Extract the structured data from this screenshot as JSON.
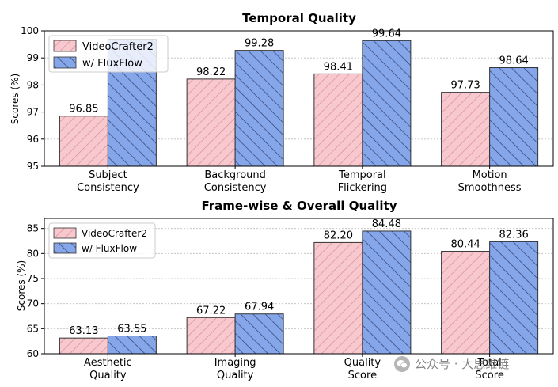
{
  "chart_data": [
    {
      "type": "bar",
      "title": "Temporal Quality",
      "ylabel": "Scores (%)",
      "xlabel": "",
      "ylim": [
        95,
        100
      ],
      "yticks": [
        95,
        96,
        97,
        98,
        99,
        100
      ],
      "categories": [
        [
          "Subject",
          "Consistency"
        ],
        [
          "Background",
          "Consistency"
        ],
        [
          "Temporal",
          "Flickering"
        ],
        [
          "Motion",
          "Smoothness"
        ]
      ],
      "series": [
        {
          "name": "VideoCrafter2",
          "values": [
            96.85,
            98.22,
            98.41,
            97.73
          ],
          "labels": [
            "96.85",
            "98.22",
            "98.41",
            "97.73"
          ],
          "fill": "#f7c9cf",
          "hatch": "#d98a96"
        },
        {
          "name": "w/ FluxFlow",
          "values": [
            99.69,
            99.28,
            99.64,
            98.64
          ],
          "labels": [
            "",
            "99.28",
            "99.64",
            "98.64"
          ],
          "fill": "#86a6ea",
          "hatch": "#2e3f6e"
        }
      ],
      "legend": "top-left",
      "grid": true
    },
    {
      "type": "bar",
      "title": "Frame-wise & Overall Quality",
      "ylabel": "Scores (%)",
      "xlabel": "",
      "ylim": [
        60,
        87
      ],
      "yticks": [
        60,
        65,
        70,
        75,
        80,
        85
      ],
      "categories": [
        [
          "Aesthetic",
          "Quality"
        ],
        [
          "Imaging",
          "Quality"
        ],
        [
          "Quality",
          "Score"
        ],
        [
          "Total",
          "Score"
        ]
      ],
      "series": [
        {
          "name": "VideoCrafter2",
          "values": [
            63.13,
            67.22,
            82.2,
            80.44
          ],
          "labels": [
            "63.13",
            "67.22",
            "82.20",
            "80.44"
          ],
          "fill": "#f7c9cf",
          "hatch": "#d98a96"
        },
        {
          "name": "w/ FluxFlow",
          "values": [
            63.55,
            67.94,
            84.48,
            82.36
          ],
          "labels": [
            "63.55",
            "67.94",
            "84.48",
            "82.36"
          ],
          "fill": "#86a6ea",
          "hatch": "#2e3f6e"
        }
      ],
      "legend": "top-left",
      "grid": true
    }
  ],
  "watermark": {
    "text": "公众号 · 大思维链"
  }
}
